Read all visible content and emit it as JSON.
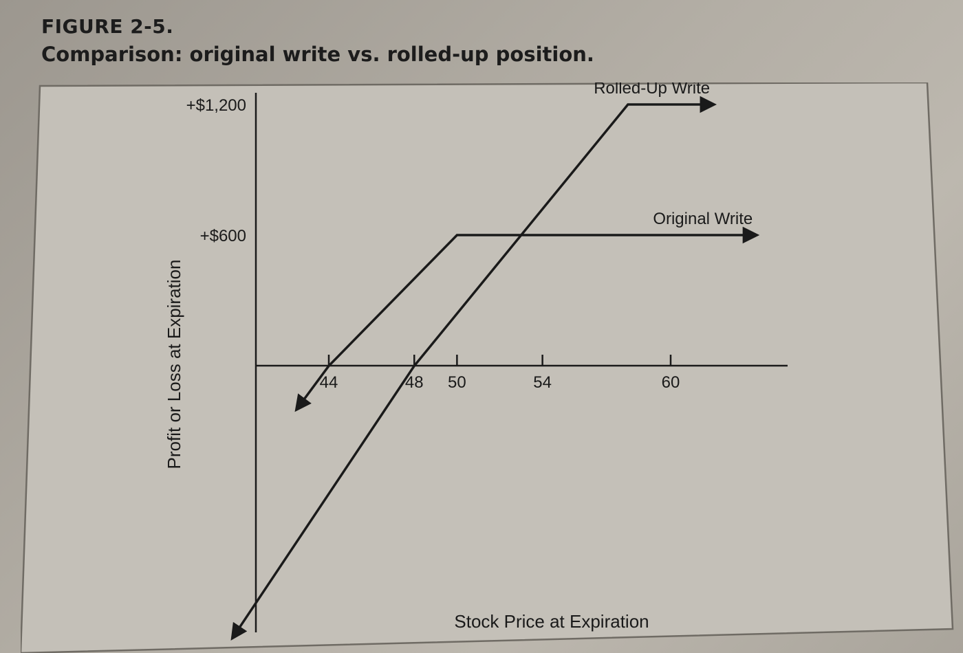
{
  "figure": {
    "label": "FIGURE 2-5.",
    "caption": "Comparison: original write vs. rolled-up position."
  },
  "chart_data": {
    "type": "line",
    "xlabel": "Stock Price at Expiration",
    "ylabel": "Profit or Loss at Expiration",
    "x_ticks": [
      44,
      48,
      50,
      54,
      60
    ],
    "y_ticks": [
      {
        "value": 1200,
        "label": "+$1,200"
      },
      {
        "value": 600,
        "label": "+$600"
      }
    ],
    "xlim": [
      39,
      66
    ],
    "ylim": [
      -1300,
      1300
    ],
    "series": [
      {
        "name": "Rolled-Up Write",
        "x": [
          39.5,
          48,
          58,
          62
        ],
        "y": [
          -1250,
          -1,
          1200,
          1200
        ]
      },
      {
        "name": "Original Write",
        "x": [
          42.5,
          44,
          50,
          64
        ],
        "y": [
          -200,
          -1,
          600,
          600
        ]
      }
    ],
    "grid": false,
    "legend": "none"
  }
}
